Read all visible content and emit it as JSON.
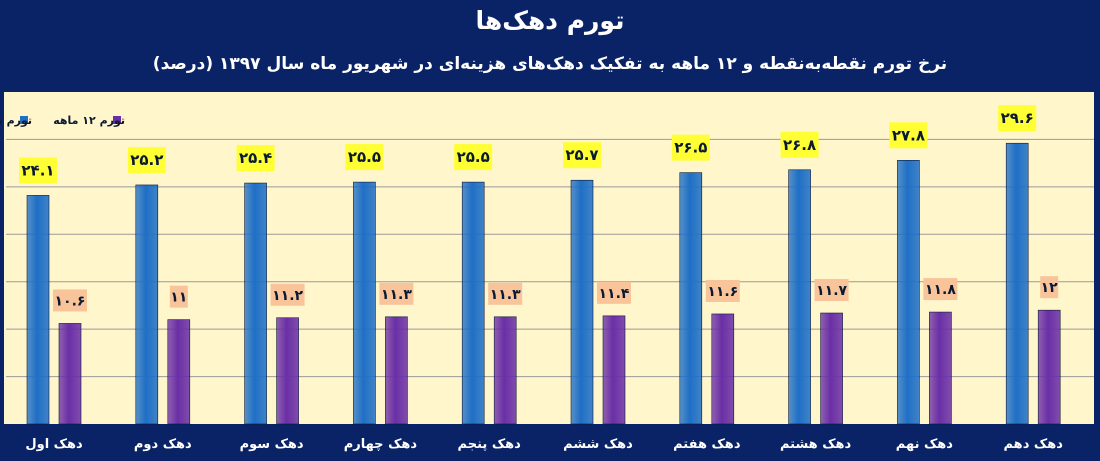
{
  "chart_data": {
    "type": "bar",
    "title": "تورم دهک‌ها",
    "subtitle": "نرخ تورم نقطه‌به‌نقطه و ۱۲ ماهه به تفکیک دهک‌های هزینه‌ای در شهریور ماه سال ۱۳۹۷ (درصد)",
    "categories": [
      "دهک اول",
      "دهک دوم",
      "دهک سوم",
      "دهک چهارم",
      "دهک پنجم",
      "دهک ششم",
      "دهک هفتم",
      "دهک هشتم",
      "دهک نهم",
      "دهک دهم"
    ],
    "series": [
      {
        "name": "تورم نقطه‌ای",
        "values": [
          24.1,
          25.2,
          25.4,
          25.5,
          25.5,
          25.7,
          26.5,
          26.8,
          27.8,
          29.6
        ],
        "labels": [
          "۲۴.۱",
          "۲۵.۲",
          "۲۵.۴",
          "۲۵.۵",
          "۲۵.۵",
          "۲۵.۷",
          "۲۶.۵",
          "۲۶.۸",
          "۲۷.۸",
          "۲۹.۶"
        ],
        "color": "#1f6fc6",
        "label_bg": "#ffff33"
      },
      {
        "name": "تورم ۱۲ ماهه",
        "values": [
          10.6,
          11,
          11.2,
          11.3,
          11.3,
          11.4,
          11.6,
          11.7,
          11.8,
          12
        ],
        "labels": [
          "۱۰.۶",
          "۱۱",
          "۱۱.۲",
          "۱۱.۳",
          "۱۱.۳",
          "۱۱.۴",
          "۱۱.۶",
          "۱۱.۷",
          "۱۱.۸",
          "۱۲"
        ],
        "color": "#6a2fa6",
        "label_bg": "#f9c49a"
      }
    ],
    "ylim": [
      0,
      35
    ],
    "grid": true,
    "legend": "top-left"
  }
}
